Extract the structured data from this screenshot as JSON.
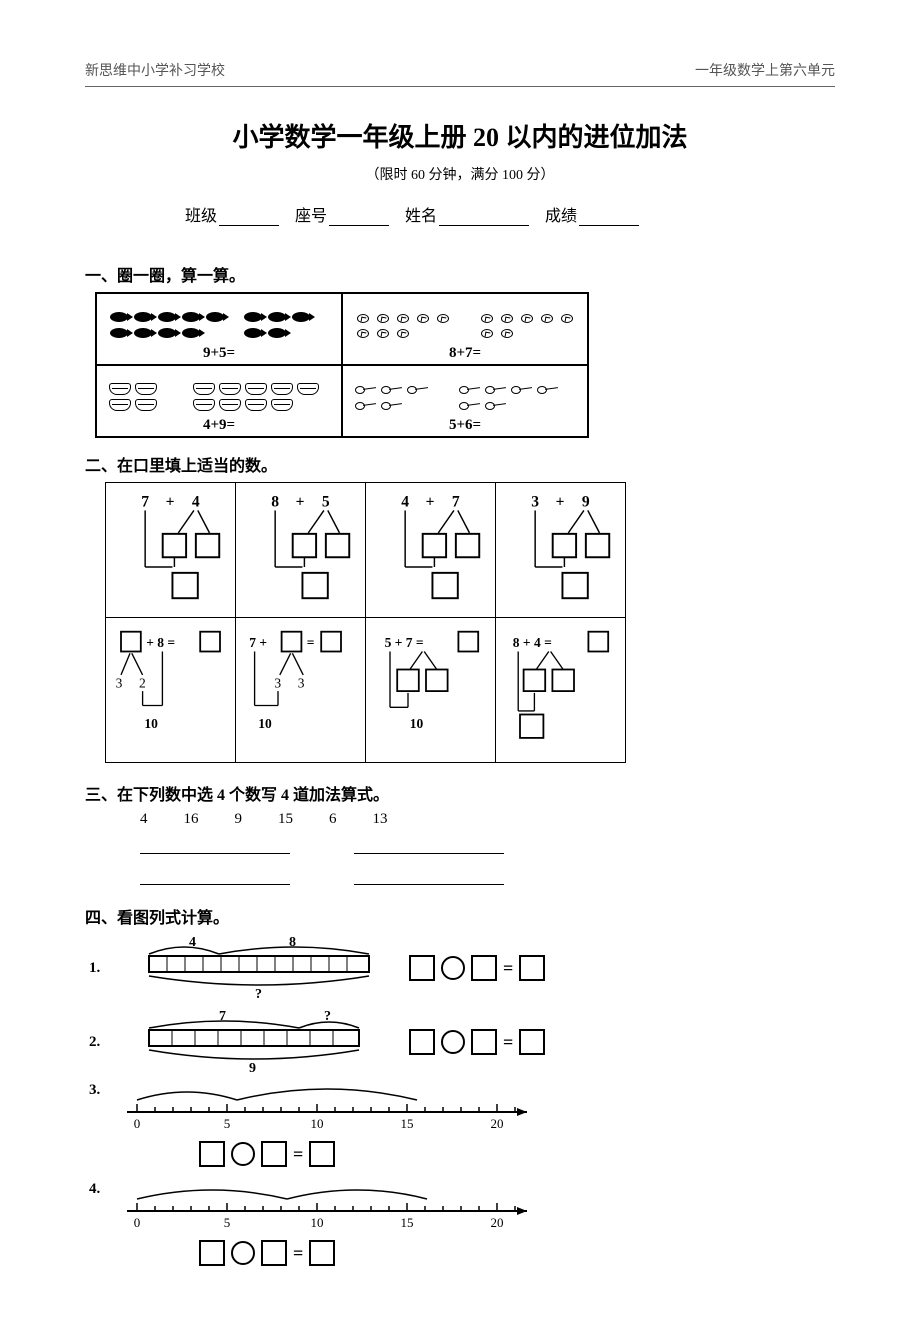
{
  "header": {
    "left": "新思维中小学补习学校",
    "right": "一年级数学上第六单元"
  },
  "title": "小学数学一年级上册 20 以内的进位加法",
  "subtitle": "（限时 60 分钟，满分 100 分）",
  "info": {
    "class": "班级",
    "seat": "座号",
    "name": "姓名",
    "score": "成绩"
  },
  "sections": {
    "s1": {
      "heading": "一、圈一圈，算一算。",
      "cells": [
        {
          "eq": "9+5=",
          "left_count": 9,
          "right_count": 5,
          "icon": "fish"
        },
        {
          "eq": "8+7=",
          "left_count": 8,
          "right_count": 7,
          "icon": "seed"
        },
        {
          "eq": "4+9=",
          "left_count": 4,
          "right_count": 9,
          "icon": "sand"
        },
        {
          "eq": "5+6=",
          "left_count": 5,
          "right_count": 6,
          "icon": "spoon"
        }
      ]
    },
    "s2": {
      "heading": "二、在口里填上适当的数。",
      "row1": [
        {
          "a": "7",
          "op": "+",
          "b": "4"
        },
        {
          "a": "8",
          "op": "+",
          "b": "5"
        },
        {
          "a": "4",
          "op": "+",
          "b": "7"
        },
        {
          "a": "3",
          "op": "+",
          "b": "9"
        }
      ],
      "row2": [
        {
          "pre_box": true,
          "mid": "+ 8 =",
          "split": [
            "3",
            "2"
          ],
          "below": "10"
        },
        {
          "lead": "7 +",
          "post_box": true,
          "tail": "=",
          "split": [
            "3",
            "3"
          ],
          "below": "10"
        },
        {
          "text": "5  + 7 =",
          "below": "10"
        },
        {
          "text": "8  + 4 ="
        }
      ]
    },
    "s3": {
      "heading": "三、在下列数中选 4 个数写 4 道加法算式。",
      "numbers": [
        "4",
        "16",
        "9",
        "15",
        "6",
        "13"
      ]
    },
    "s4": {
      "heading": "四、看图列式计算。",
      "p1": {
        "num": "1.",
        "top_left": "4",
        "top_right": "8",
        "below": "?"
      },
      "p2": {
        "num": "2.",
        "top_left": "7",
        "top_right": "?",
        "below": "9"
      },
      "p3": {
        "num": "3.",
        "ticks": [
          "0",
          "5",
          "10",
          "15",
          "20"
        ]
      },
      "p4": {
        "num": "4.",
        "ticks": [
          "0",
          "5",
          "10",
          "15",
          "20"
        ]
      }
    }
  },
  "colors": {
    "text": "#000000",
    "bg": "#ffffff",
    "line": "#000000",
    "header_text": "#555555"
  }
}
